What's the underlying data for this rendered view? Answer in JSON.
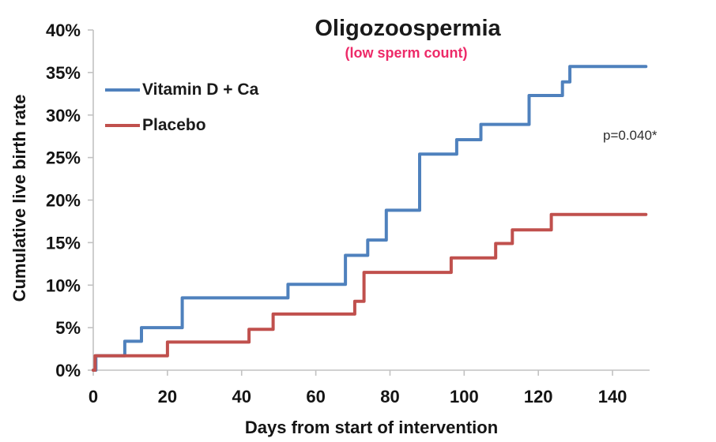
{
  "header": {
    "title": "Oligozoospermia",
    "subtitle": "(low sperm count)"
  },
  "annotation": {
    "text": "p=0.040*"
  },
  "colors": {
    "vitamin_d_line": "#4F81BD",
    "placebo_line": "#C0504D",
    "subtitle_pink": "#ED2A68",
    "axis_gray": "#C2C2C2",
    "text_black": "#141414"
  },
  "chart_data": {
    "type": "line",
    "subtype": "step-kaplan-meier",
    "title": "Oligozoospermia",
    "subtitle": "(low sperm count)",
    "xlabel": "Days from start of intervention",
    "ylabel": "Cumulative live birth rate",
    "xlim": [
      0,
      150
    ],
    "ylim": [
      0,
      40
    ],
    "grid": false,
    "legend_position": "top-left-inside",
    "annotation": "p=0.040*",
    "x_ticks": [
      0,
      20,
      40,
      60,
      80,
      100,
      120,
      140
    ],
    "x_tick_labels": [
      "0",
      "20",
      "40",
      "60",
      "80",
      "100",
      "120",
      "140"
    ],
    "y_ticks": [
      0,
      5,
      10,
      15,
      20,
      25,
      30,
      35,
      40
    ],
    "y_tick_labels": [
      "0%",
      "5%",
      "10%",
      "15%",
      "20%",
      "25%",
      "30%",
      "35%",
      "40%"
    ],
    "series": [
      {
        "name": "Vitamin D + Ca",
        "id": "vitamin-d-ca",
        "color": "#4F81BD",
        "end_x": 149,
        "steps": [
          [
            0,
            0
          ],
          [
            0.7,
            1.7
          ],
          [
            8.5,
            3.4
          ],
          [
            13,
            5.0
          ],
          [
            24,
            8.5
          ],
          [
            52.5,
            10.1
          ],
          [
            68,
            13.5
          ],
          [
            74,
            15.3
          ],
          [
            79,
            18.8
          ],
          [
            88,
            25.4
          ],
          [
            98,
            27.1
          ],
          [
            104.5,
            28.9
          ],
          [
            117.5,
            32.3
          ],
          [
            126.5,
            33.9
          ],
          [
            128.5,
            35.7
          ]
        ]
      },
      {
        "name": "Placebo",
        "id": "placebo",
        "color": "#C0504D",
        "end_x": 149,
        "steps": [
          [
            0,
            0
          ],
          [
            0.5,
            1.7
          ],
          [
            20,
            3.3
          ],
          [
            42,
            4.8
          ],
          [
            48.5,
            6.6
          ],
          [
            70.5,
            8.1
          ],
          [
            73,
            11.5
          ],
          [
            96.5,
            13.2
          ],
          [
            108.5,
            14.9
          ],
          [
            113,
            16.5
          ],
          [
            123.5,
            18.3
          ]
        ]
      }
    ]
  }
}
